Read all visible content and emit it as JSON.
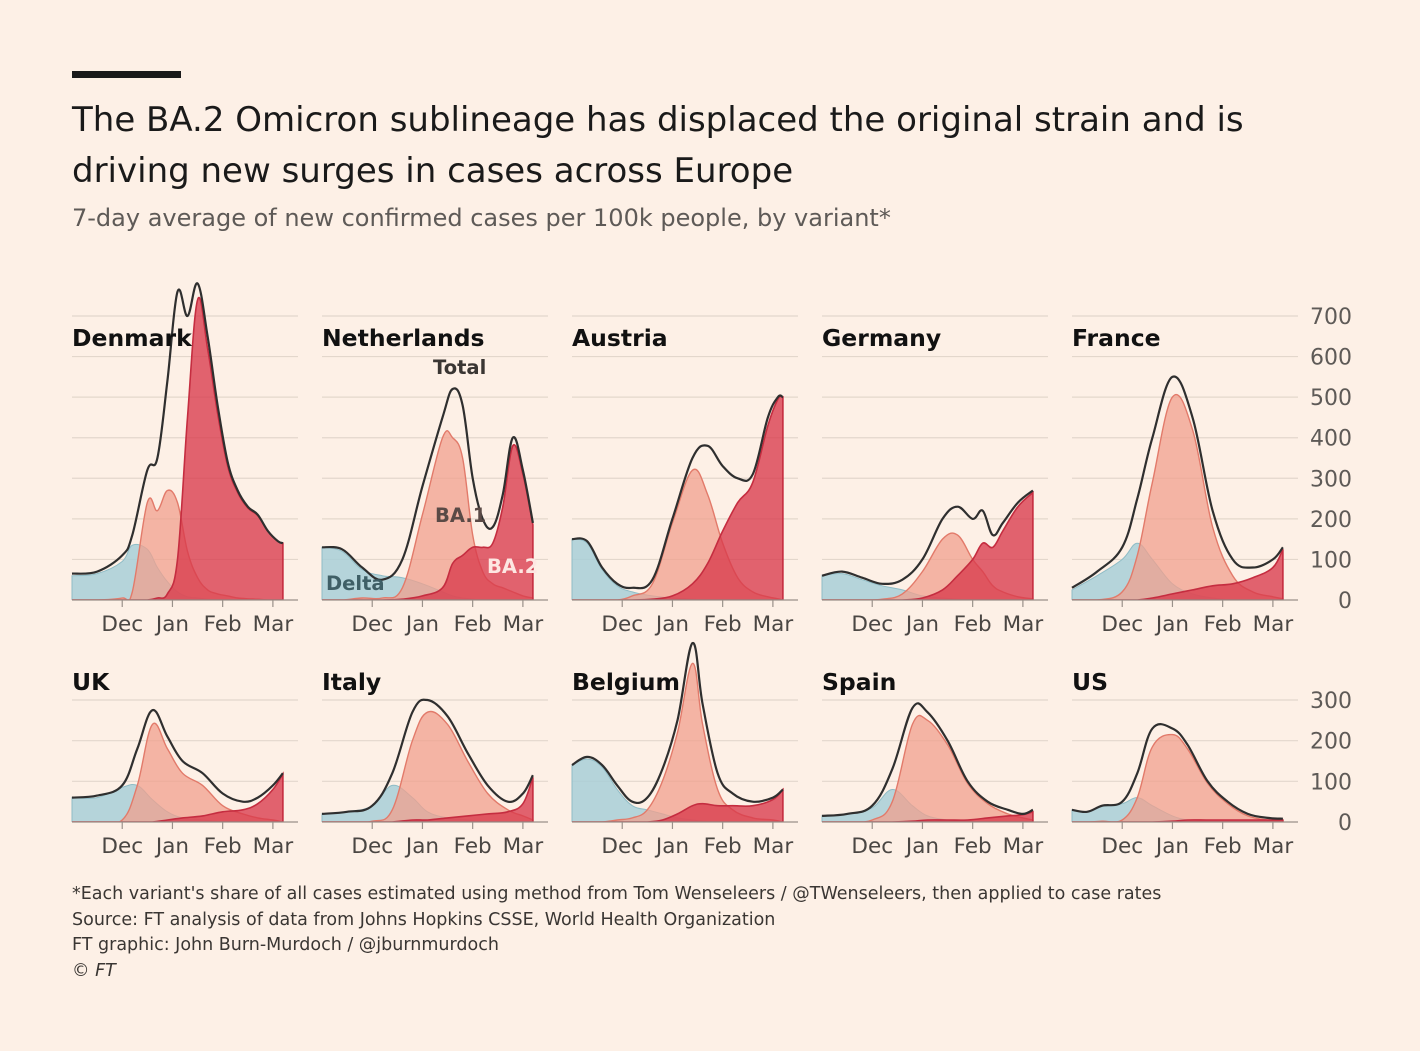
{
  "header": {
    "title": "The BA.2 Omicron sublineage has displaced the original strain and is driving new surges in cases across Europe",
    "subtitle": "7-day average of new confirmed cases per 100k people, by variant*"
  },
  "footer": {
    "note": "*Each variant's share of all cases estimated using method from Tom Wenseleers / @TWenseleers, then applied to case rates",
    "source": "Source: FT analysis of data from Johns Hopkins CSSE, World Health Organization",
    "credit": "FT graphic: John Burn-Murdoch / @jburnmurdoch",
    "copyright": "© FT"
  },
  "colors": {
    "background": "#fdf0e6",
    "delta": "#a8cfd7",
    "ba1": "#f0a08e",
    "ba2": "#d83a4c",
    "total": "#2f2f2f",
    "grid": "#e3d7cc"
  },
  "chart_data": {
    "type": "area",
    "description": "Small multiples, 7-day average of new confirmed cases per 100k people by variant (Delta, BA.1, BA.2) plus Total line",
    "x_ticks": [
      "Dec",
      "Jan",
      "Feb",
      "Mar"
    ],
    "x_tick_months": [
      1,
      2,
      3,
      4
    ],
    "x_range_months": [
      0,
      4.5
    ],
    "legend_labels": {
      "total": "Total",
      "ba1": "BA.1",
      "ba2": "BA.2",
      "delta": "Delta"
    },
    "rows": [
      {
        "ylim": [
          0,
          700
        ],
        "yticks": [
          0,
          100,
          200,
          300,
          400,
          500,
          600,
          700
        ],
        "panels": [
          {
            "country": "Denmark",
            "x": [
              0,
              0.5,
              1.0,
              1.2,
              1.5,
              1.7,
              1.9,
              2.1,
              2.3,
              2.5,
              2.7,
              2.9,
              3.1,
              3.3,
              3.5,
              3.7,
              3.9,
              4.1,
              4.2
            ],
            "total": [
              65,
              70,
              110,
              160,
              320,
              350,
              540,
              760,
              700,
              780,
              650,
              480,
              340,
              270,
              230,
              210,
              170,
              145,
              140
            ],
            "delta": [
              60,
              65,
              95,
              135,
              125,
              80,
              45,
              20,
              8,
              5,
              2,
              0,
              0,
              0,
              0,
              0,
              0,
              0,
              0
            ],
            "ba1": [
              0,
              0,
              5,
              20,
              240,
              220,
              270,
              240,
              120,
              55,
              25,
              15,
              10,
              5,
              3,
              2,
              0,
              0,
              0
            ],
            "ba2": [
              0,
              0,
              0,
              0,
              0,
              5,
              15,
              100,
              450,
              740,
              620,
              460,
              330,
              265,
              227,
              208,
              170,
              145,
              140
            ]
          },
          {
            "country": "Netherlands",
            "x": [
              0,
              0.4,
              0.8,
              1.2,
              1.6,
              2.0,
              2.4,
              2.6,
              2.8,
              3.0,
              3.2,
              3.4,
              3.6,
              3.8,
              4.0,
              4.2
            ],
            "total": [
              130,
              125,
              80,
              50,
              100,
              280,
              450,
              520,
              480,
              300,
              200,
              180,
              260,
              400,
              320,
              190
            ],
            "delta": [
              130,
              120,
              75,
              60,
              55,
              40,
              20,
              10,
              5,
              2,
              0,
              0,
              0,
              0,
              0,
              0
            ],
            "ba1": [
              0,
              0,
              5,
              5,
              30,
              210,
              400,
              400,
              350,
              160,
              70,
              40,
              30,
              20,
              10,
              5
            ],
            "ba2": [
              0,
              0,
              0,
              0,
              2,
              10,
              30,
              90,
              110,
              130,
              130,
              140,
              230,
              380,
              310,
              185
            ]
          },
          {
            "country": "Austria",
            "x": [
              0,
              0.3,
              0.6,
              0.9,
              1.2,
              1.6,
              2.0,
              2.4,
              2.7,
              3.0,
              3.3,
              3.6,
              3.9,
              4.1,
              4.2
            ],
            "total": [
              150,
              145,
              80,
              40,
              30,
              50,
              200,
              350,
              380,
              330,
              300,
              310,
              450,
              500,
              500
            ],
            "delta": [
              150,
              140,
              75,
              35,
              20,
              10,
              5,
              2,
              0,
              0,
              0,
              0,
              0,
              0,
              0
            ],
            "ba1": [
              0,
              0,
              0,
              0,
              10,
              40,
              190,
              320,
              260,
              140,
              55,
              20,
              8,
              3,
              0
            ],
            "ba2": [
              0,
              0,
              0,
              0,
              0,
              2,
              10,
              40,
              90,
              170,
              240,
              290,
              430,
              495,
              500
            ]
          },
          {
            "country": "Germany",
            "x": [
              0,
              0.4,
              0.8,
              1.2,
              1.6,
              2.0,
              2.4,
              2.7,
              3.0,
              3.2,
              3.4,
              3.6,
              3.9,
              4.2
            ],
            "total": [
              60,
              70,
              55,
              40,
              50,
              100,
              200,
              230,
              200,
              220,
              160,
              190,
              240,
              270
            ],
            "delta": [
              60,
              65,
              50,
              35,
              25,
              10,
              5,
              2,
              0,
              0,
              0,
              0,
              0,
              0
            ],
            "ba1": [
              0,
              0,
              0,
              2,
              15,
              70,
              150,
              160,
              100,
              70,
              35,
              20,
              8,
              3
            ],
            "ba2": [
              0,
              0,
              0,
              0,
              0,
              5,
              25,
              60,
              100,
              140,
              130,
              170,
              230,
              265
            ]
          },
          {
            "country": "France",
            "x": [
              0,
              0.5,
              1.0,
              1.3,
              1.6,
              2.0,
              2.4,
              2.8,
              3.2,
              3.6,
              4.0,
              4.2
            ],
            "total": [
              30,
              70,
              130,
              250,
              400,
              550,
              450,
              220,
              100,
              80,
              100,
              130
            ],
            "delta": [
              25,
              60,
              100,
              140,
              100,
              40,
              15,
              5,
              0,
              0,
              0,
              0
            ],
            "ba1": [
              0,
              0,
              20,
              110,
              290,
              500,
              420,
              180,
              60,
              20,
              8,
              3
            ],
            "ba2": [
              0,
              0,
              0,
              0,
              5,
              15,
              25,
              35,
              40,
              55,
              80,
              125
            ]
          }
        ]
      },
      {
        "ylim": [
          0,
          300
        ],
        "yticks": [
          0,
          100,
          200,
          300
        ],
        "panels": [
          {
            "country": "UK",
            "x": [
              0,
              0.5,
              1.0,
              1.3,
              1.6,
              1.9,
              2.2,
              2.6,
              3.0,
              3.4,
              3.7,
              4.0,
              4.2
            ],
            "total": [
              60,
              65,
              90,
              180,
              275,
              210,
              150,
              120,
              70,
              50,
              60,
              90,
              120
            ],
            "delta": [
              60,
              60,
              85,
              90,
              55,
              25,
              10,
              5,
              0,
              0,
              0,
              0,
              0
            ],
            "ba1": [
              0,
              0,
              5,
              90,
              240,
              180,
              120,
              90,
              40,
              20,
              10,
              5,
              0
            ],
            "ba2": [
              0,
              0,
              0,
              0,
              0,
              5,
              10,
              15,
              25,
              30,
              45,
              80,
              118
            ]
          },
          {
            "country": "Italy",
            "x": [
              0,
              0.5,
              1.0,
              1.4,
              1.8,
              2.1,
              2.5,
              2.9,
              3.3,
              3.7,
              4.0,
              4.2
            ],
            "total": [
              20,
              25,
              40,
              120,
              270,
              300,
              260,
              170,
              90,
              50,
              70,
              115
            ],
            "delta": [
              20,
              25,
              40,
              90,
              60,
              25,
              10,
              5,
              0,
              0,
              0,
              0
            ],
            "ba1": [
              0,
              0,
              2,
              30,
              200,
              270,
              240,
              150,
              70,
              30,
              15,
              5
            ],
            "ba2": [
              0,
              0,
              0,
              0,
              5,
              5,
              10,
              15,
              20,
              25,
              45,
              110
            ]
          },
          {
            "country": "Belgium",
            "x": [
              0,
              0.3,
              0.6,
              0.9,
              1.2,
              1.5,
              1.8,
              2.1,
              2.4,
              2.6,
              2.9,
              3.2,
              3.6,
              4.0,
              4.2
            ],
            "total": [
              140,
              160,
              140,
              90,
              50,
              60,
              130,
              250,
              440,
              290,
              120,
              70,
              50,
              60,
              80
            ],
            "delta": [
              140,
              155,
              135,
              80,
              40,
              30,
              20,
              10,
              5,
              2,
              0,
              0,
              0,
              0,
              0
            ],
            "ba1": [
              0,
              0,
              0,
              5,
              10,
              30,
              100,
              220,
              390,
              240,
              80,
              30,
              10,
              5,
              0
            ],
            "ba2": [
              0,
              0,
              0,
              0,
              0,
              0,
              5,
              20,
              40,
              45,
              40,
              40,
              40,
              55,
              80
            ]
          },
          {
            "country": "Spain",
            "x": [
              0,
              0.5,
              1.0,
              1.4,
              1.8,
              2.1,
              2.5,
              2.9,
              3.3,
              3.7,
              4.0,
              4.2
            ],
            "total": [
              15,
              20,
              40,
              130,
              280,
              270,
              200,
              100,
              50,
              30,
              20,
              30
            ],
            "delta": [
              15,
              20,
              35,
              80,
              40,
              15,
              5,
              0,
              0,
              0,
              0,
              0
            ],
            "ba1": [
              0,
              0,
              5,
              50,
              240,
              250,
              190,
              95,
              45,
              20,
              10,
              5
            ],
            "ba2": [
              0,
              0,
              0,
              0,
              2,
              5,
              5,
              5,
              10,
              15,
              18,
              25
            ]
          },
          {
            "country": "US",
            "x": [
              0,
              0.3,
              0.6,
              1.0,
              1.3,
              1.6,
              2.0,
              2.3,
              2.7,
              3.1,
              3.5,
              3.9,
              4.2
            ],
            "total": [
              30,
              25,
              40,
              50,
              120,
              230,
              230,
              190,
              100,
              50,
              20,
              10,
              8
            ],
            "delta": [
              30,
              25,
              38,
              45,
              60,
              40,
              15,
              5,
              0,
              0,
              0,
              0,
              0
            ],
            "ba1": [
              0,
              0,
              2,
              5,
              60,
              185,
              215,
              180,
              95,
              45,
              15,
              5,
              3
            ],
            "ba2": [
              0,
              0,
              0,
              0,
              0,
              0,
              2,
              5,
              5,
              5,
              5,
              5,
              5
            ]
          }
        ]
      }
    ]
  }
}
